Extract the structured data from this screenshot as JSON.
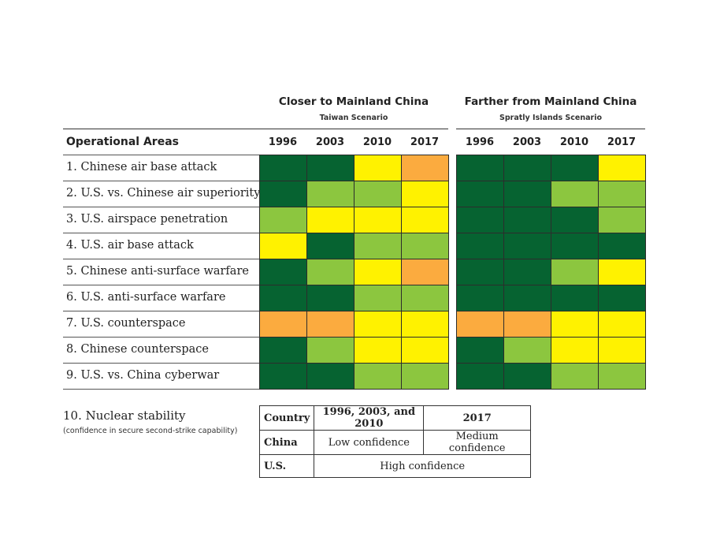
{
  "chart_data": {
    "type": "heatmap",
    "row_header": "Operational Areas",
    "groups": [
      {
        "title": "Closer to Mainland China",
        "subtitle": "Taiwan Scenario",
        "years": [
          "1996",
          "2003",
          "2010",
          "2017"
        ]
      },
      {
        "title": "Farther from Mainland China",
        "subtitle": "Spratly Islands Scenario",
        "years": [
          "1996",
          "2003",
          "2010",
          "2017"
        ]
      }
    ],
    "rows": [
      "1. Chinese air base attack",
      "2. U.S. vs. Chinese air superiority",
      "3. U.S. airspace penetration",
      "4. U.S. air base attack",
      "5. Chinese anti-surface warfare",
      "6. U.S. anti-surface warfare",
      "7. U.S. counterspace",
      "8. Chinese counterspace",
      "9. U.S. vs. China cyberwar"
    ],
    "colors": {
      "1": "#066331",
      "2": "#8cc63f",
      "3": "#fff200",
      "4": "#fbab3f"
    },
    "values": [
      [
        [
          1,
          1,
          3,
          4
        ],
        [
          1,
          1,
          1,
          3
        ]
      ],
      [
        [
          1,
          2,
          2,
          3
        ],
        [
          1,
          1,
          2,
          2
        ]
      ],
      [
        [
          2,
          3,
          3,
          3
        ],
        [
          1,
          1,
          1,
          2
        ]
      ],
      [
        [
          3,
          1,
          2,
          2
        ],
        [
          1,
          1,
          1,
          1
        ]
      ],
      [
        [
          1,
          2,
          3,
          4
        ],
        [
          1,
          1,
          2,
          3
        ]
      ],
      [
        [
          1,
          1,
          2,
          2
        ],
        [
          1,
          1,
          1,
          1
        ]
      ],
      [
        [
          4,
          4,
          3,
          3
        ],
        [
          4,
          4,
          3,
          3
        ]
      ],
      [
        [
          1,
          2,
          3,
          3
        ],
        [
          1,
          2,
          3,
          3
        ]
      ],
      [
        [
          1,
          1,
          2,
          2
        ],
        [
          1,
          1,
          2,
          2
        ]
      ]
    ]
  },
  "nuclear": {
    "title": "10. Nuclear stability",
    "subtitle": "(confidence in secure second-strike capability)",
    "headers": [
      "Country",
      "1996, 2003, and 2010",
      "2017"
    ],
    "china": {
      "label": "China",
      "early": "Low confidence",
      "late": "Medium confidence"
    },
    "us": {
      "label": "U.S.",
      "all": "High confidence"
    }
  }
}
